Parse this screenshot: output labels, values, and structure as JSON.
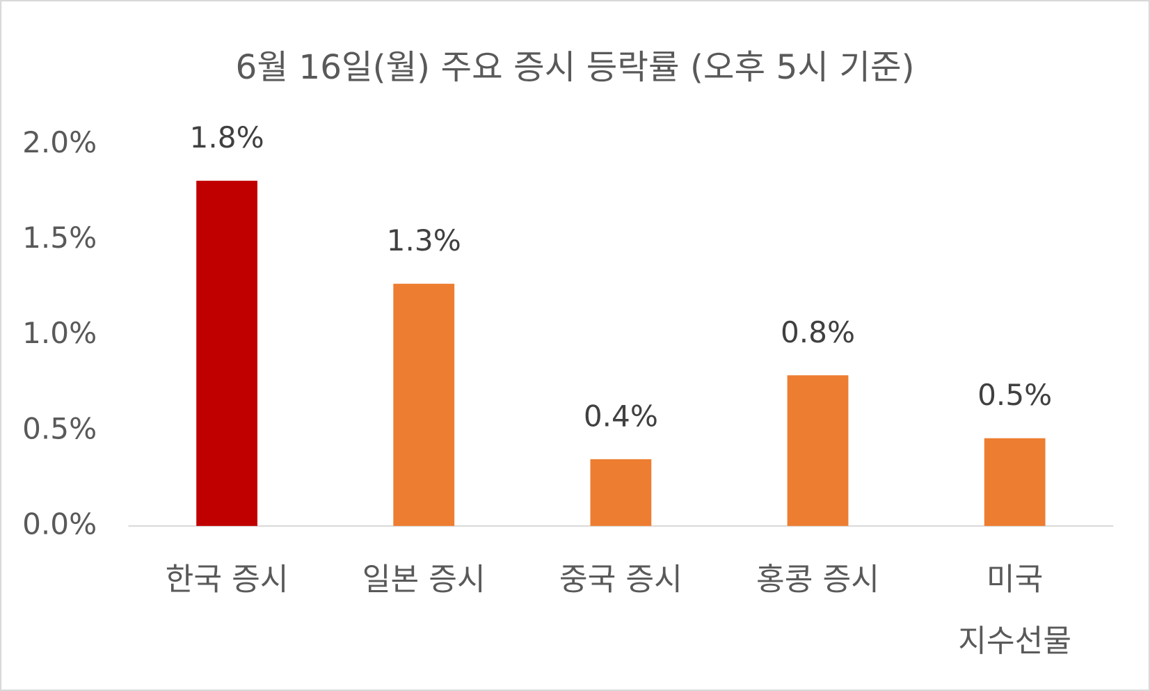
{
  "chart_data": {
    "type": "bar",
    "title": "6월 16일(월) 주요 증시 등락률 (오후 5시 기준)",
    "categories": [
      "한국 증시",
      "일본 증시",
      "중국 증시",
      "홍콩 증시",
      "미국\n지수선물"
    ],
    "values": [
      1.81,
      1.27,
      0.35,
      0.79,
      0.46
    ],
    "value_labels": [
      "1.8%",
      "1.3%",
      "0.4%",
      "0.8%",
      "0.5%"
    ],
    "colors": [
      "#c00000",
      "#ed7d31",
      "#ed7d31",
      "#ed7d31",
      "#ed7d31"
    ],
    "ylim": [
      0,
      2
    ],
    "yticks": [
      {
        "value": 0,
        "label": "0.0%"
      },
      {
        "value": 0.5,
        "label": "0.5%"
      },
      {
        "value": 1,
        "label": "1.0%"
      },
      {
        "value": 1.5,
        "label": "1.5%"
      },
      {
        "value": 2,
        "label": "2.0%"
      }
    ],
    "grid": false
  }
}
